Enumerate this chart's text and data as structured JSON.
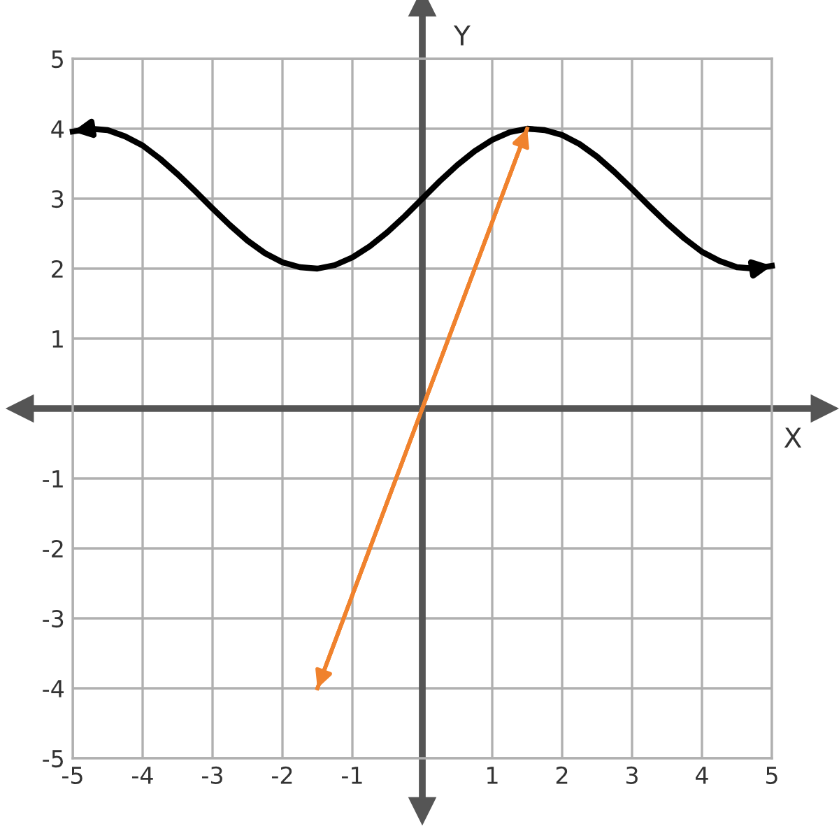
{
  "chart_data": {
    "type": "line",
    "xlabel": "X",
    "ylabel": "Y",
    "xlim": [
      -5,
      5
    ],
    "ylim": [
      -5,
      5
    ],
    "xticks": [
      -5,
      -4,
      -3,
      -2,
      -1,
      1,
      2,
      3,
      4,
      5
    ],
    "yticks": [
      -5,
      -4,
      -3,
      -2,
      -1,
      1,
      2,
      3,
      4,
      5
    ],
    "grid": true,
    "marker": "none",
    "line_style": "solid",
    "series": [
      {
        "color": "#000000",
        "x": [
          -5,
          -4.75,
          -4.5,
          -4.25,
          -4,
          -3.75,
          -3.5,
          -3.25,
          -3,
          -2.75,
          -2.5,
          -2.25,
          -2,
          -1.75,
          -1.5,
          -1.25,
          -1,
          -0.75,
          -0.5,
          -0.25,
          0,
          0.25,
          0.5,
          0.75,
          1,
          1.25,
          1.5,
          1.75,
          2,
          2.25,
          2.5,
          2.75,
          3,
          3.25,
          3.5,
          3.75,
          4,
          4.25,
          4.5,
          4.75,
          5
        ],
        "values": [
          3.96,
          4.0,
          3.98,
          3.89,
          3.76,
          3.57,
          3.35,
          3.11,
          2.86,
          2.62,
          2.4,
          2.22,
          2.09,
          2.02,
          2.0,
          2.05,
          2.16,
          2.32,
          2.52,
          2.75,
          3.0,
          3.25,
          3.48,
          3.68,
          3.84,
          3.95,
          4.0,
          3.98,
          3.91,
          3.78,
          3.6,
          3.38,
          3.14,
          2.89,
          2.65,
          2.43,
          2.24,
          2.11,
          2.02,
          2.0,
          2.04
        ]
      },
      {
        "color": "#f0822d",
        "x": [
          -1.5,
          1.5
        ],
        "values": [
          -4,
          4
        ]
      }
    ]
  }
}
